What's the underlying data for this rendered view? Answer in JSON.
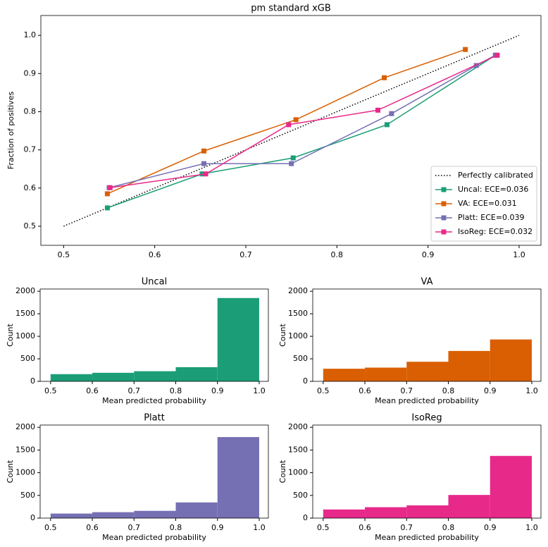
{
  "chart_data": [
    {
      "type": "line",
      "title": "pm standard xGB",
      "ylabel": "Fraction of positives",
      "xlim": [
        0.475,
        1.024
      ],
      "ylim": [
        0.45,
        1.052
      ],
      "xticks": [
        0.5,
        0.6,
        0.7,
        0.8,
        0.9,
        {
          "value": 1,
          "label": "1.0"
        }
      ],
      "yticks": [
        0.5,
        0.6,
        0.7,
        0.8,
        0.9,
        {
          "value": 1,
          "label": "1.0"
        }
      ],
      "legend": "lower right",
      "series": [
        {
          "name": "Perfectly calibrated",
          "color": "#000000",
          "style": "dotted",
          "x": [
            0.5,
            1
          ],
          "values": [
            0.5,
            1
          ]
        },
        {
          "name": "Uncal: ECE=0.036",
          "color": "#1b9e77",
          "x": [
            0.548,
            0.652,
            0.752,
            0.855,
            0.974
          ],
          "values": [
            0.548,
            0.637,
            0.679,
            0.766,
            0.948
          ]
        },
        {
          "name": "VA: ECE=0.031",
          "color": "#d95f02",
          "x": [
            0.548,
            0.654,
            0.755,
            0.852,
            0.941
          ],
          "values": [
            0.585,
            0.697,
            0.779,
            0.889,
            0.963
          ]
        },
        {
          "name": "Platt: ECE=0.039",
          "color": "#7570b3",
          "x": [
            0.55,
            0.654,
            0.75,
            0.86,
            0.953,
            0.974
          ],
          "values": [
            0.601,
            0.664,
            0.664,
            0.795,
            0.921,
            0.948
          ]
        },
        {
          "name": "IsoReg: ECE=0.032",
          "color": "#e7298a",
          "x": [
            0.551,
            0.656,
            0.747,
            0.845,
            0.976
          ],
          "values": [
            0.601,
            0.637,
            0.766,
            0.804,
            0.948
          ]
        }
      ]
    },
    {
      "type": "histogram",
      "title": "Uncal",
      "xlabel": "Mean predicted probability",
      "ylabel": "Count",
      "color": "#1b9e77",
      "bins": [
        0.5,
        0.6,
        0.7,
        0.8,
        0.9,
        1
      ],
      "values": [
        160,
        190,
        225,
        315,
        1850
      ],
      "xlim": [
        0.475,
        1.022
      ],
      "ylim": [
        0,
        2050
      ],
      "xticks": [
        0.5,
        0.6,
        0.7,
        0.8,
        0.9,
        {
          "value": 1,
          "label": "1.0"
        }
      ],
      "yticks": [
        0,
        500,
        1000,
        1500,
        2000
      ]
    },
    {
      "type": "histogram",
      "title": "VA",
      "xlabel": "Mean predicted probability",
      "ylabel": "Count",
      "color": "#d95f02",
      "bins": [
        0.5,
        0.6,
        0.7,
        0.8,
        0.9,
        1
      ],
      "values": [
        280,
        305,
        435,
        675,
        930
      ],
      "xlim": [
        0.475,
        1.022
      ],
      "ylim": [
        0,
        2050
      ],
      "xticks": [
        0.5,
        0.6,
        0.7,
        0.8,
        0.9,
        {
          "value": 1,
          "label": "1.0"
        }
      ],
      "yticks": [
        0,
        500,
        1000,
        1500,
        2000
      ]
    },
    {
      "type": "histogram",
      "title": "Platt",
      "xlabel": "Mean predicted probability",
      "ylabel": "Count",
      "color": "#7570b3",
      "bins": [
        0.5,
        0.6,
        0.7,
        0.8,
        0.9,
        1
      ],
      "values": [
        100,
        130,
        160,
        345,
        1785
      ],
      "xlim": [
        0.475,
        1.022
      ],
      "ylim": [
        0,
        2050
      ],
      "xticks": [
        0.5,
        0.6,
        0.7,
        0.8,
        0.9,
        {
          "value": 1,
          "label": "1.0"
        }
      ],
      "yticks": [
        0,
        500,
        1000,
        1500,
        2000
      ]
    },
    {
      "type": "histogram",
      "title": "IsoReg",
      "xlabel": "Mean predicted probability",
      "ylabel": "Count",
      "color": "#e7298a",
      "bins": [
        0.5,
        0.6,
        0.7,
        0.8,
        0.9,
        1
      ],
      "values": [
        190,
        240,
        280,
        510,
        1370
      ],
      "xlim": [
        0.475,
        1.022
      ],
      "ylim": [
        0,
        2050
      ],
      "xticks": [
        0.5,
        0.6,
        0.7,
        0.8,
        0.9,
        {
          "value": 1,
          "label": "1.0"
        }
      ],
      "yticks": [
        0,
        500,
        1000,
        1500,
        2000
      ]
    }
  ]
}
